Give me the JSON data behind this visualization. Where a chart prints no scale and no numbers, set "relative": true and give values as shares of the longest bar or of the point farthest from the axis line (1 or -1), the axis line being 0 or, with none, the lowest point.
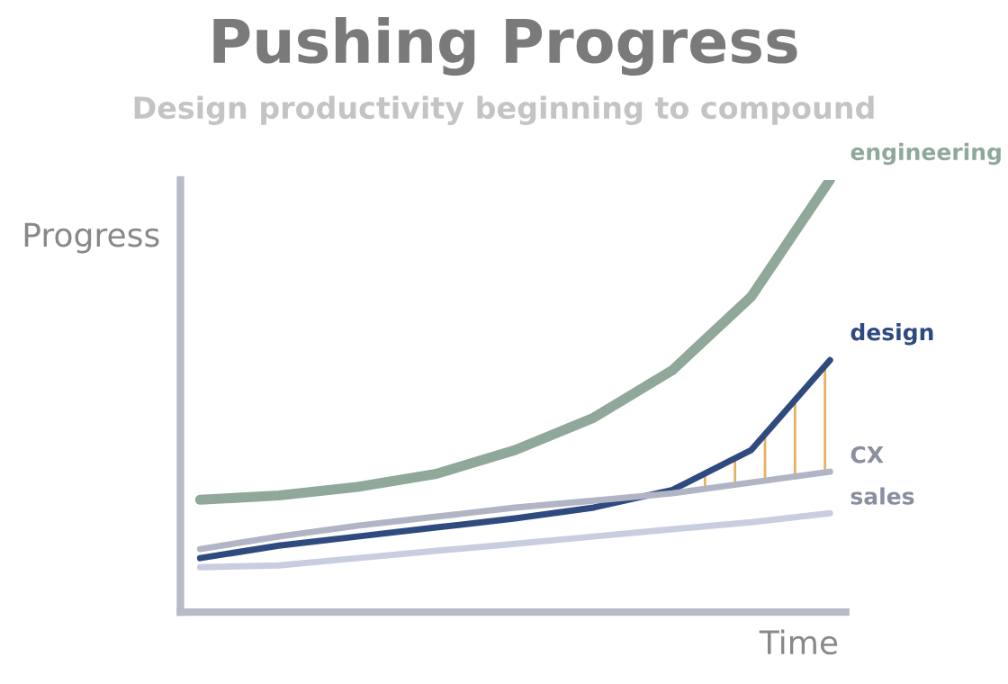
{
  "chart_data": {
    "type": "line",
    "title": "Pushing Progress",
    "subtitle": "Design productivity beginning to compound",
    "xlabel": "Time",
    "ylabel": "Progress",
    "relative": true,
    "legend": false,
    "marker": "none",
    "line_style": "solid",
    "categories": [
      null,
      null,
      null,
      null,
      null,
      null,
      null,
      null,
      null
    ],
    "series": [
      {
        "name": "engineering",
        "color": "#8fa89a",
        "values": [
          0.26,
          0.27,
          0.29,
          0.32,
          0.375,
          0.45,
          0.56,
          0.73,
          1.0
        ]
      },
      {
        "name": "design",
        "color": "#2f4a7f",
        "values": [
          0.125,
          0.154,
          0.175,
          0.196,
          0.217,
          0.242,
          0.283,
          0.375,
          0.583
        ]
      },
      {
        "name": "CX",
        "color": "#b0b4c4",
        "values": [
          0.146,
          0.175,
          0.2,
          0.221,
          0.242,
          0.258,
          0.275,
          0.3,
          0.325
        ]
      },
      {
        "name": "sales",
        "color": "#c8cde0",
        "values": [
          0.104,
          0.108,
          0.125,
          0.142,
          0.158,
          0.175,
          0.192,
          0.208,
          0.229
        ]
      }
    ]
  }
}
